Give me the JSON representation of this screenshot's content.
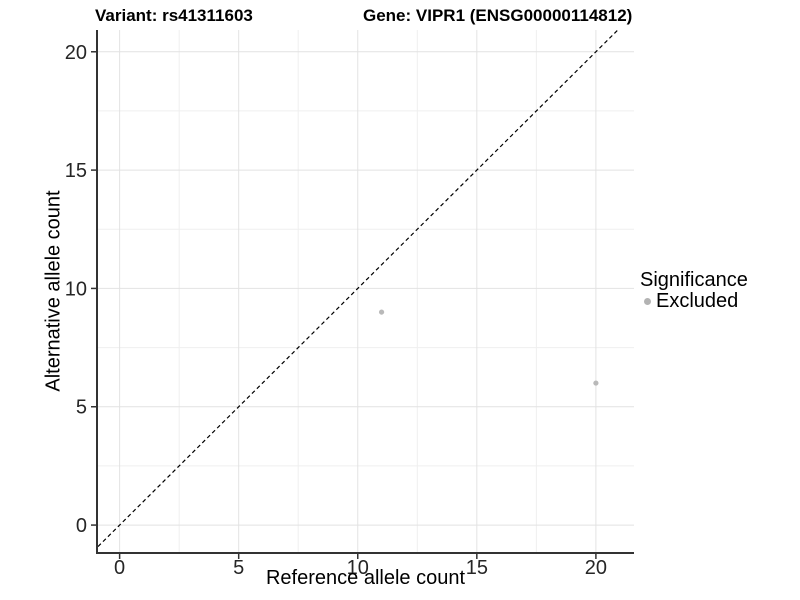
{
  "chart_data": {
    "type": "scatter",
    "title_left": "Variant: rs41311603",
    "title_right": "Gene: VIPR1 (ENSG00000114812)",
    "xlabel": "Reference allele count",
    "ylabel": "Alternative allele count",
    "x_ticks": [
      0,
      5,
      10,
      15,
      20
    ],
    "y_ticks": [
      0,
      5,
      10,
      15,
      20
    ],
    "xlim": [
      -0.95,
      21.6
    ],
    "ylim": [
      -1.18,
      20.92
    ],
    "grid": "major+minor",
    "legend_position": "right",
    "legend": {
      "title": "Significance",
      "items": [
        {
          "label": "Excluded",
          "color": "#b3b3b3"
        }
      ]
    },
    "identity_line": {
      "style": "dashed",
      "color": "#000000",
      "slope": 1,
      "intercept": 0
    },
    "series": [
      {
        "name": "Excluded",
        "color": "#b9b9b9",
        "point_radius": 2.6,
        "points": [
          {
            "x": 11,
            "y": 9
          },
          {
            "x": 20,
            "y": 6
          }
        ]
      }
    ],
    "colors": {
      "background": "#ffffff",
      "grid_major": "#e2e2e2",
      "grid_minor": "#efefef",
      "axis_line": "#333333",
      "tick_mark": "#333333",
      "tick_label": "#262626",
      "identity_line": "#000000"
    }
  }
}
